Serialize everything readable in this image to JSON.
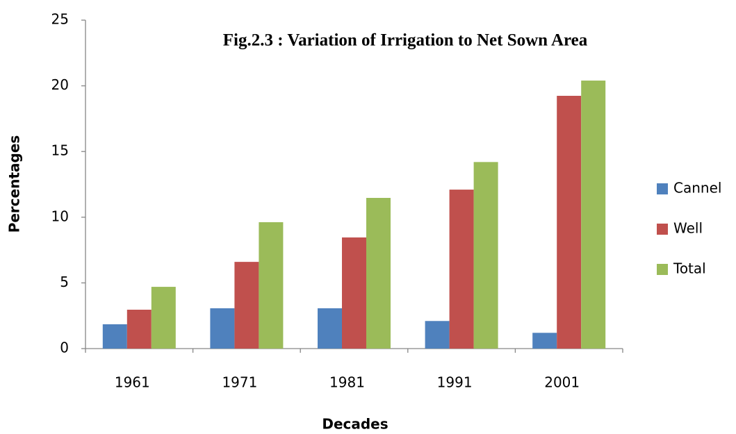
{
  "chart_data": {
    "type": "bar",
    "title": "Fig.2.3 : Variation of Irrigation to Net Sown Area",
    "xlabel": "Decades",
    "ylabel": "Percentages",
    "categories": [
      "1961",
      "1971",
      "1981",
      "1991",
      "2001"
    ],
    "series": [
      {
        "name": "Cannel",
        "color": "#4f81bd",
        "values": [
          1.85,
          3.07,
          3.07,
          2.1,
          1.2
        ]
      },
      {
        "name": "Well",
        "color": "#c0504d",
        "values": [
          2.96,
          6.6,
          8.46,
          12.1,
          19.24
        ]
      },
      {
        "name": "Total",
        "color": "#9bbb59",
        "values": [
          4.7,
          9.62,
          11.47,
          14.2,
          20.4
        ]
      }
    ],
    "ylim": [
      0,
      25
    ],
    "yticks": [
      0,
      5,
      10,
      15,
      20,
      25
    ],
    "grid": false,
    "legend": "right"
  }
}
